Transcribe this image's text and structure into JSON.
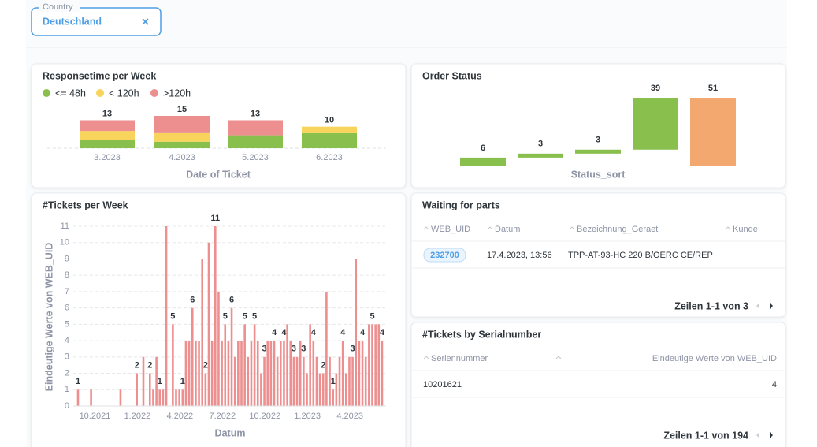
{
  "filter": {
    "label": "Country",
    "value": "Deutschland"
  },
  "responsetime": {
    "type": "bar",
    "stacked": true,
    "title": "Responsetime per Week",
    "categories": [
      "3.2023",
      "4.2023",
      "5.2023",
      "6.2023"
    ],
    "series": [
      {
        "name": "<= 48h",
        "color": "#88bf4d",
        "values": [
          4,
          3,
          6,
          7
        ]
      },
      {
        "name": "< 120h",
        "color": "#f9d45c",
        "values": [
          4,
          4,
          0,
          3
        ]
      },
      {
        "name": ">120h",
        "color": "#ed8f8f",
        "values": [
          5,
          8,
          7,
          0
        ]
      }
    ],
    "totals": [
      13,
      15,
      13,
      10
    ],
    "xlabel": "Date of Ticket"
  },
  "order_status": {
    "type": "waterfall",
    "title": "Order Status",
    "values": [
      6,
      3,
      3,
      39
    ],
    "total": 51,
    "color": "#88bf4d",
    "total_color": "#f2a86f",
    "xlabel": "Status_sort"
  },
  "tickets_per_week": {
    "type": "bar",
    "title": "#Tickets per Week",
    "color": "#ed8f8f",
    "xlabel": "Datum",
    "ylabel": "Eindeutige Werte von WEB_UID",
    "categories": [
      null,
      null,
      null,
      "10.2021",
      null,
      null,
      null,
      null,
      null,
      null,
      null,
      null,
      null,
      null,
      null,
      null,
      "1.2022",
      null,
      null,
      null,
      null,
      null,
      null,
      null,
      null,
      null,
      null,
      null,
      null,
      "4.2022",
      null,
      null,
      null,
      null,
      null,
      null,
      null,
      null,
      null,
      null,
      null,
      null,
      "7.2022",
      null,
      null,
      null,
      null,
      null,
      null,
      null,
      null,
      null,
      null,
      null,
      null,
      "10.2022",
      null,
      null,
      null,
      null,
      null,
      null,
      null,
      null,
      null,
      null,
      null,
      null,
      "1.2023",
      null,
      null,
      null,
      null,
      null,
      null,
      null,
      null,
      null,
      null,
      null,
      null,
      "4.2023",
      null,
      null,
      null,
      null,
      null,
      null,
      null,
      null,
      null,
      null,
      null,
      null
    ],
    "values": [
      1,
      0,
      0,
      0,
      1,
      0,
      0,
      0,
      0,
      0,
      0,
      0,
      0,
      1,
      0,
      0,
      0,
      0,
      2,
      0,
      3,
      0,
      2,
      1,
      3,
      1,
      1,
      11,
      0,
      5,
      1,
      1,
      1,
      4,
      4,
      6,
      4,
      4,
      9,
      2,
      10,
      4,
      11,
      7,
      4,
      5,
      4,
      6,
      3,
      4,
      4,
      5,
      3,
      4,
      5,
      4,
      2,
      3,
      4,
      4,
      4,
      3,
      4,
      4,
      5,
      4,
      3,
      3,
      4,
      3,
      2,
      5,
      4,
      3,
      2,
      2,
      7,
      3,
      1,
      2,
      3,
      4,
      2,
      3,
      3,
      9,
      4,
      4,
      3,
      5,
      5,
      5,
      5,
      4
    ],
    "value_labels": [
      "1",
      null,
      null,
      null,
      null,
      null,
      null,
      null,
      null,
      null,
      null,
      null,
      null,
      null,
      null,
      null,
      null,
      null,
      "2",
      null,
      null,
      null,
      "2",
      null,
      null,
      "1",
      null,
      null,
      null,
      "5",
      null,
      null,
      "1",
      null,
      null,
      "6",
      null,
      null,
      null,
      "2",
      null,
      null,
      "11",
      null,
      null,
      "5",
      null,
      "6",
      null,
      null,
      null,
      "5",
      null,
      null,
      "5",
      null,
      null,
      "3",
      null,
      null,
      "4",
      null,
      null,
      "4",
      null,
      null,
      "3",
      null,
      null,
      "3",
      null,
      null,
      "4",
      null,
      null,
      "2",
      null,
      null,
      "1",
      null,
      null,
      "4",
      null,
      null,
      "3",
      null,
      null,
      "4",
      null,
      null,
      "5",
      null,
      null,
      "4"
    ],
    "ylim": [
      0,
      11
    ],
    "yticks": [
      0,
      1,
      2,
      3,
      4,
      5,
      6,
      7,
      8,
      9,
      10,
      11
    ],
    "grid": true
  },
  "waiting_for_parts": {
    "title": "Waiting for parts",
    "columns": [
      "WEB_UID",
      "Datum",
      "Bezeichnung_Geraet",
      "Kunde"
    ],
    "rows": [
      [
        "232700",
        "17.4.2023, 13:56",
        "TPP-AT-93-HC 220 B/OERC CE/REP"
      ]
    ],
    "footer": "Zeilen 1-1 von 3"
  },
  "tickets_by_serial": {
    "title": "#Tickets by Serialnumber",
    "columns": [
      "Seriennummer",
      "Eindeutige Werte von WEB_UID"
    ],
    "rows": [
      [
        "10201621",
        "4"
      ]
    ],
    "footer": "Zeilen 1-1 von 194"
  }
}
